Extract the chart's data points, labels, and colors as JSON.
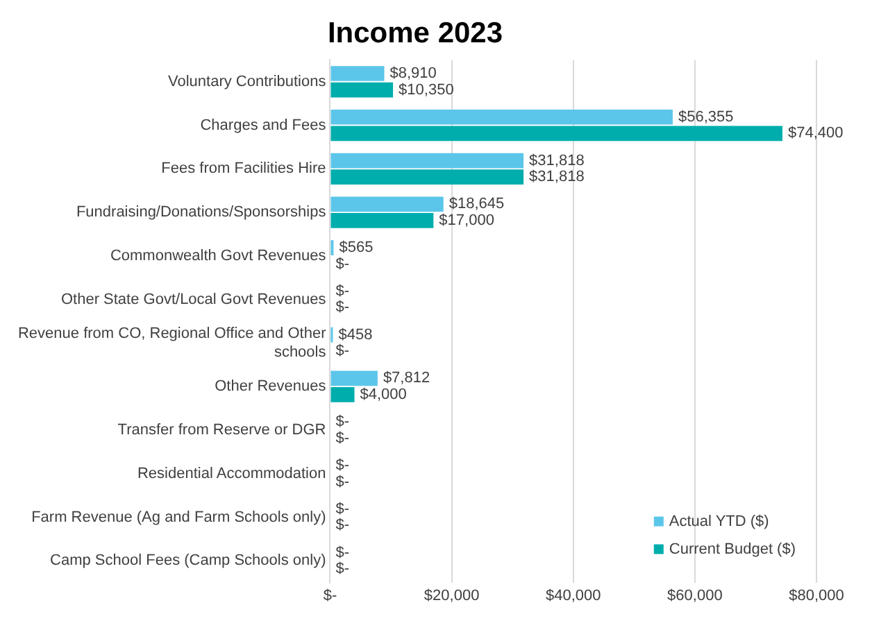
{
  "chart_data": {
    "type": "bar",
    "title": "Income 2023",
    "orientation": "horizontal",
    "categories": [
      "Voluntary Contributions",
      "Charges and Fees",
      "Fees from Facilities Hire",
      "Fundraising/Donations/Sponsorships",
      "Commonwealth Govt Revenues",
      "Other State Govt/Local Govt Revenues",
      "Revenue from CO, Regional Office and Other schools",
      "Other Revenues",
      "Transfer from Reserve or DGR",
      "Residential Accommodation",
      "Farm Revenue (Ag and Farm Schools only)",
      "Camp School Fees (Camp Schools only)"
    ],
    "series": [
      {
        "name": "Actual YTD ($)",
        "color": "#5bc6ea",
        "values": [
          8910,
          56355,
          31818,
          18645,
          565,
          0,
          458,
          7812,
          0,
          0,
          0,
          0
        ],
        "value_labels": [
          "$8,910",
          "$56,355",
          "$31,818",
          "$18,645",
          "$565",
          "$-",
          "$458",
          "$7,812",
          "$-",
          "$-",
          "$-",
          "$-"
        ]
      },
      {
        "name": "Current Budget ($)",
        "color": "#00adad",
        "values": [
          10350,
          74400,
          31818,
          17000,
          0,
          0,
          0,
          4000,
          0,
          0,
          0,
          0
        ],
        "value_labels": [
          "$10,350",
          "$74,400",
          "$31,818",
          "$17,000",
          "$-",
          "$-",
          "$-",
          "$4,000",
          "$-",
          "$-",
          "$-",
          "$-"
        ]
      }
    ],
    "xlim": [
      0,
      80000
    ],
    "xticks": [
      {
        "value": 0,
        "label": "$-"
      },
      {
        "value": 20000,
        "label": "$20,000"
      },
      {
        "value": 40000,
        "label": "$40,000"
      },
      {
        "value": 60000,
        "label": "$60,000"
      },
      {
        "value": 80000,
        "label": "$80,000"
      }
    ],
    "grid": "x",
    "legend": "bottom right"
  }
}
